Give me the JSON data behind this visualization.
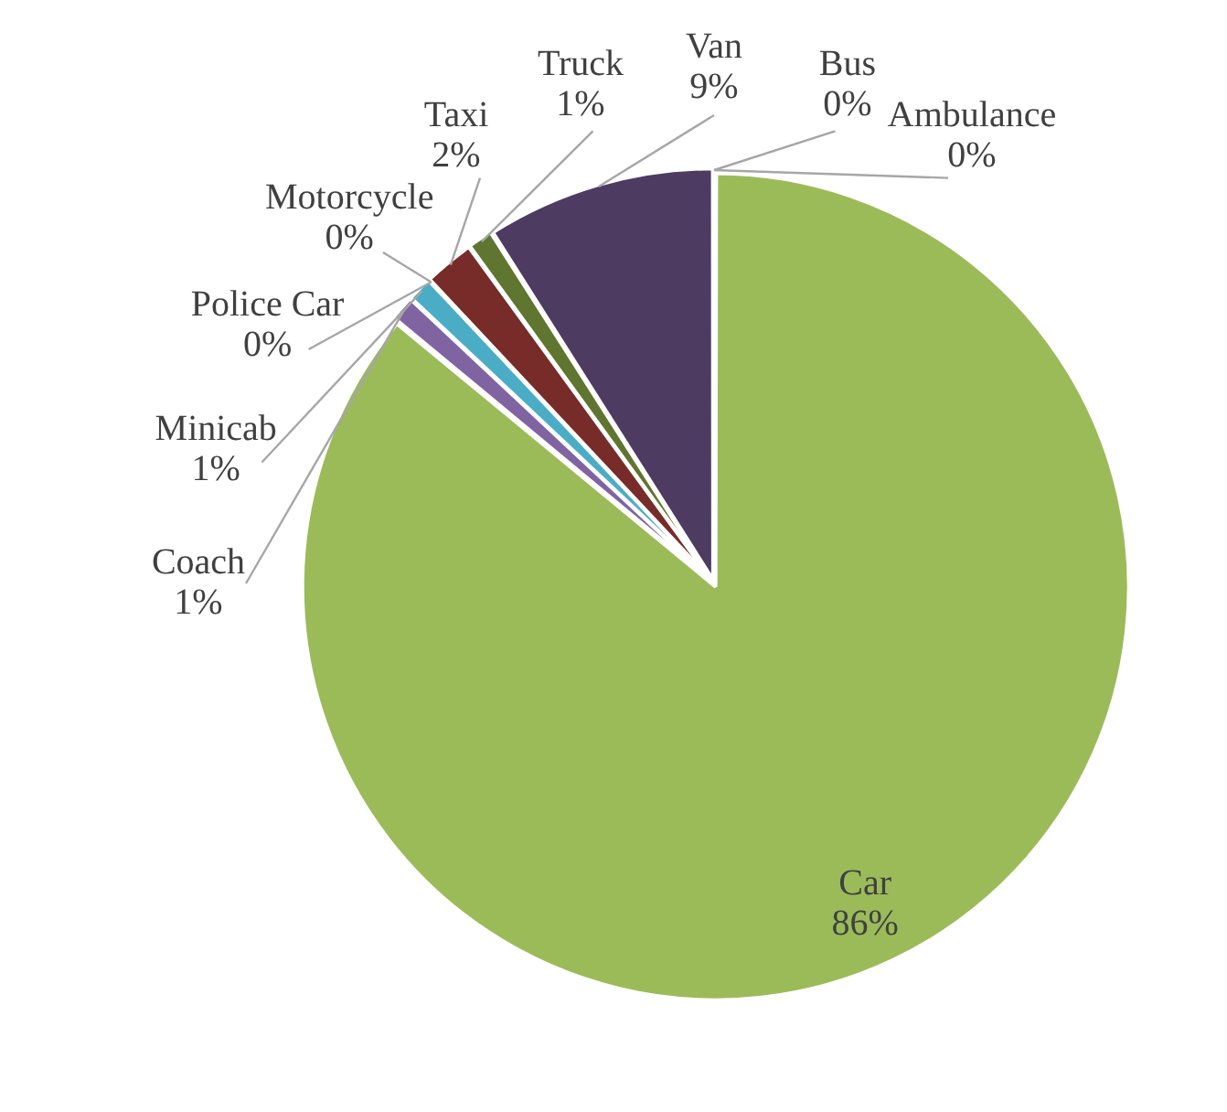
{
  "chart_data": {
    "type": "pie",
    "categories": [
      "Bus",
      "Ambulance",
      "Car",
      "Coach",
      "Minicab",
      "Police Car",
      "Motorcycle",
      "Taxi",
      "Truck",
      "Van"
    ],
    "values": [
      0,
      0,
      86,
      1,
      1,
      0,
      0,
      2,
      1,
      9
    ],
    "value_labels": [
      "0%",
      "0%",
      "86%",
      "1%",
      "1%",
      "0%",
      "0%",
      "2%",
      "1%",
      "9%"
    ],
    "colors": [
      "#4f81bd",
      "#c0504d",
      "#9bbb59",
      "#8064a2",
      "#4bacc6",
      "#f79646",
      "#2c4d75",
      "#772c2a",
      "#5f7530",
      "#4d3b62"
    ],
    "legend": false
  }
}
